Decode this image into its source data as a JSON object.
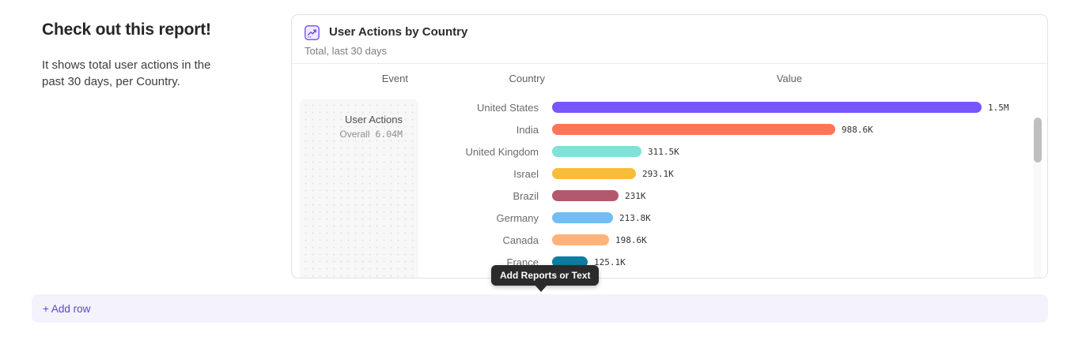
{
  "intro": {
    "heading": "Check out this report!",
    "body": "It shows total user actions in the past 30 days, per Country."
  },
  "report_card": {
    "icon": "line-chart-icon",
    "title": "User Actions by Country",
    "subtitle": "Total, last 30 days",
    "columns": [
      "Event",
      "Country",
      "Value"
    ],
    "event_cell": {
      "name": "User Actions",
      "overall_label": "Overall",
      "overall_value": "6.04M"
    }
  },
  "chart_data": {
    "type": "bar",
    "orientation": "horizontal",
    "title": "User Actions by Country",
    "subtitle": "Total, last 30 days",
    "event": "User Actions",
    "overall_total": "6.04M",
    "categories": [
      "United States",
      "India",
      "United Kingdom",
      "Israel",
      "Brazil",
      "Germany",
      "Canada",
      "France"
    ],
    "values": [
      1500000,
      988600,
      311500,
      293100,
      231000,
      213800,
      198600,
      125100
    ],
    "value_labels": [
      "1.5M",
      "988.6K",
      "311.5K",
      "293.1K",
      "231K",
      "213.8K",
      "198.6K",
      "125.1K"
    ],
    "bar_colors": [
      "#7856ff",
      "#ff7557",
      "#80e1d9",
      "#f8bc3b",
      "#b2596e",
      "#72bef4",
      "#ffb27a",
      "#0d7ea0"
    ],
    "xmax": 1500000,
    "legend": "none",
    "grid": "off"
  },
  "tooltip": {
    "text": "Add Reports or Text"
  },
  "add_row": {
    "label": "+ Add row"
  },
  "colors": {
    "accent_purple": "#7856ff",
    "add_row_bg": "#f4f2fc",
    "add_row_text": "#544bc2",
    "tooltip_bg": "#2b2b2b",
    "card_border": "#e2e2e2"
  }
}
